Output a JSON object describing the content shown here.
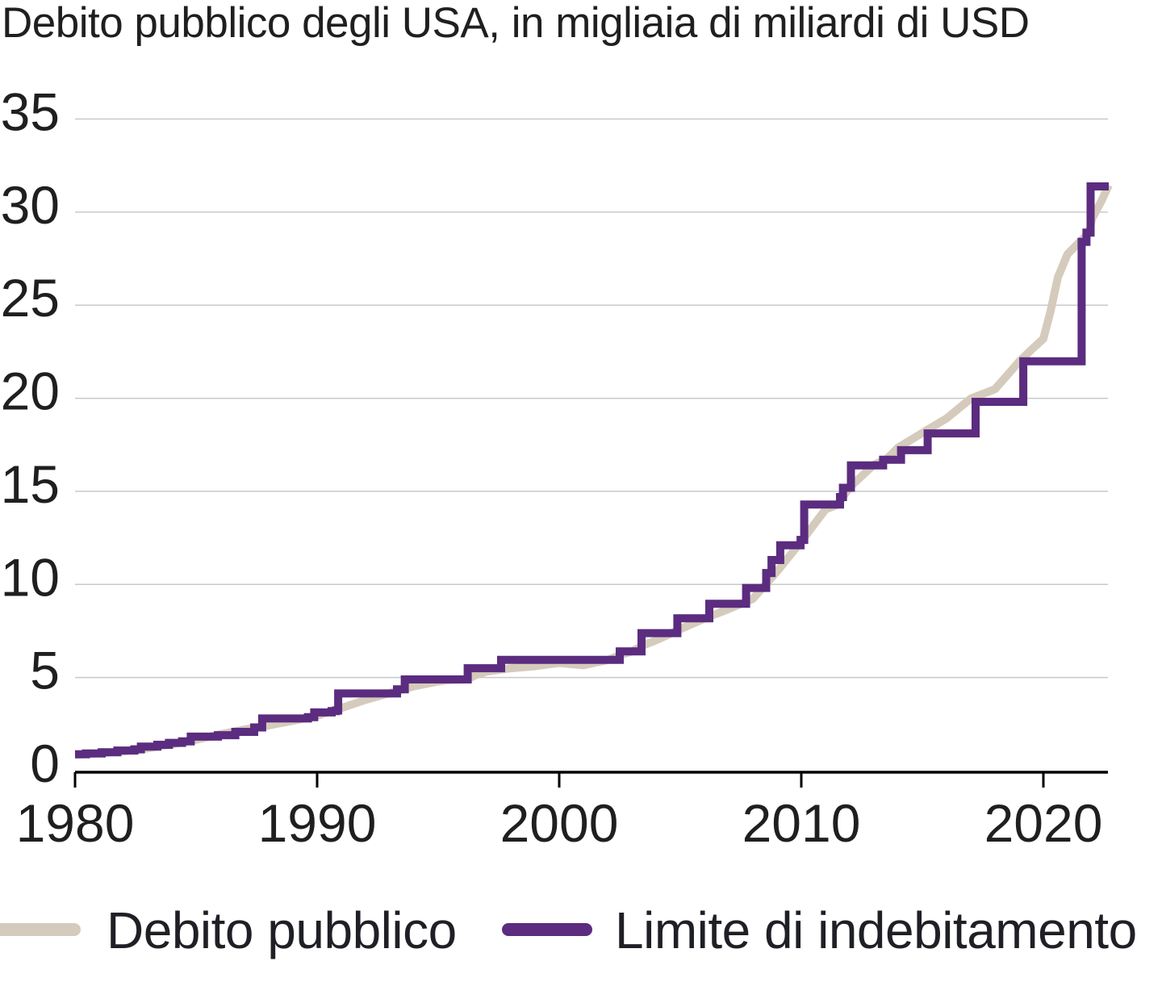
{
  "title": "Debito pubblico degli USA, in migliaia di miliardi di USD",
  "legend": {
    "items": [
      {
        "label": "Debito pubblico",
        "color": "#d5cbbc"
      },
      {
        "label": "Limite di indebitamento",
        "color": "#5b2c7f"
      }
    ]
  },
  "colors": {
    "debt_line": "#d5cbbc",
    "limit_line": "#5b2c7f",
    "gridline": "#c9c9c9",
    "axis": "#000000",
    "text": "#1f1f1f"
  },
  "chart_data": {
    "type": "line",
    "title": "Debito pubblico degli USA, in migliaia di miliardi di USD",
    "xlabel": "",
    "ylabel": "migliaia di miliardi di USD",
    "xlim": [
      1980,
      2022.7
    ],
    "ylim": [
      0,
      35
    ],
    "x_ticks": [
      1980,
      1990,
      2000,
      2010,
      2020
    ],
    "y_ticks": [
      0,
      5,
      10,
      15,
      20,
      25,
      30,
      35
    ],
    "grid": "horizontal",
    "legend_position": "bottom",
    "series": [
      {
        "name": "Debito pubblico",
        "style": "line",
        "color": "#d5cbbc",
        "points": [
          [
            1980,
            0.85
          ],
          [
            1981,
            0.93
          ],
          [
            1982,
            1.03
          ],
          [
            1983,
            1.2
          ],
          [
            1984,
            1.41
          ],
          [
            1985,
            1.66
          ],
          [
            1986,
            1.95
          ],
          [
            1987,
            2.21
          ],
          [
            1988,
            2.43
          ],
          [
            1989,
            2.68
          ],
          [
            1990,
            2.95
          ],
          [
            1991,
            3.36
          ],
          [
            1992,
            3.8
          ],
          [
            1993,
            4.17
          ],
          [
            1994,
            4.53
          ],
          [
            1995,
            4.79
          ],
          [
            1995.5,
            4.87
          ],
          [
            1996.2,
            4.9
          ],
          [
            1996.5,
            5.1
          ],
          [
            1997,
            5.32
          ],
          [
            1998,
            5.5
          ],
          [
            1999,
            5.61
          ],
          [
            2000,
            5.78
          ],
          [
            2001,
            5.66
          ],
          [
            2002,
            5.94
          ],
          [
            2002.5,
            6.2
          ],
          [
            2003,
            6.4
          ],
          [
            2003.5,
            6.75
          ],
          [
            2004,
            7.0
          ],
          [
            2005,
            7.6
          ],
          [
            2006,
            8.17
          ],
          [
            2007,
            8.68
          ],
          [
            2008,
            9.23
          ],
          [
            2009,
            10.7
          ],
          [
            2010,
            12.31
          ],
          [
            2011,
            14.03
          ],
          [
            2011.5,
            14.29
          ],
          [
            2012,
            15.22
          ],
          [
            2013,
            16.43
          ],
          [
            2013.5,
            16.7
          ],
          [
            2014,
            17.35
          ],
          [
            2015,
            18.14
          ],
          [
            2016,
            18.92
          ],
          [
            2017,
            19.98
          ],
          [
            2018,
            20.49
          ],
          [
            2019,
            21.97
          ],
          [
            2019.5,
            22.6
          ],
          [
            2020,
            23.2
          ],
          [
            2020.3,
            24.7
          ],
          [
            2020.6,
            26.5
          ],
          [
            2021,
            27.75
          ],
          [
            2021.5,
            28.4
          ],
          [
            2021.9,
            28.9
          ],
          [
            2022,
            29.62
          ],
          [
            2022.4,
            30.6
          ],
          [
            2022.7,
            31.45
          ]
        ]
      },
      {
        "name": "Limite di indebitamento",
        "style": "step",
        "color": "#5b2c7f",
        "points": [
          [
            1980.0,
            0.879
          ],
          [
            1980.45,
            0.925
          ],
          [
            1981.1,
            0.985
          ],
          [
            1981.75,
            1.08
          ],
          [
            1982.45,
            1.143
          ],
          [
            1982.72,
            1.29
          ],
          [
            1983.4,
            1.389
          ],
          [
            1983.88,
            1.49
          ],
          [
            1984.42,
            1.573
          ],
          [
            1984.78,
            1.824
          ],
          [
            1985.9,
            1.904
          ],
          [
            1986.62,
            2.079
          ],
          [
            1987.4,
            2.32
          ],
          [
            1987.73,
            2.8
          ],
          [
            1989.62,
            2.87
          ],
          [
            1989.88,
            3.123
          ],
          [
            1990.6,
            3.195
          ],
          [
            1990.78,
            3.23
          ],
          [
            1990.87,
            4.145
          ],
          [
            1993.3,
            4.37
          ],
          [
            1993.62,
            4.9
          ],
          [
            1996.22,
            5.5
          ],
          [
            1997.6,
            5.95
          ],
          [
            2002.5,
            6.4
          ],
          [
            2003.4,
            7.384
          ],
          [
            2004.88,
            8.184
          ],
          [
            2006.2,
            8.965
          ],
          [
            2007.72,
            9.815
          ],
          [
            2008.55,
            10.615
          ],
          [
            2008.77,
            11.315
          ],
          [
            2009.13,
            12.104
          ],
          [
            2009.97,
            12.394
          ],
          [
            2010.12,
            14.294
          ],
          [
            2011.6,
            14.694
          ],
          [
            2011.72,
            15.194
          ],
          [
            2012.05,
            16.394
          ],
          [
            2013.38,
            16.699
          ],
          [
            2014.12,
            17.212
          ],
          [
            2015.22,
            18.113
          ],
          [
            2017.2,
            19.809
          ],
          [
            2019.17,
            21.988
          ],
          [
            2021.58,
            28.4
          ],
          [
            2021.78,
            28.9
          ],
          [
            2021.95,
            31.381
          ],
          [
            2022.7,
            31.381
          ]
        ]
      }
    ]
  }
}
